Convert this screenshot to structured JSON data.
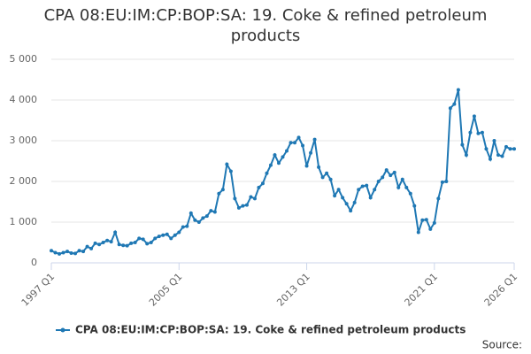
{
  "chart_data": {
    "type": "line",
    "title": "CPA 08:EU:IM:CP:BOP:SA: 19. Coke & refined petroleum products",
    "categories": [
      "1997 Q1",
      null,
      null,
      null,
      null,
      null,
      null,
      null,
      null,
      null,
      null,
      null,
      null,
      null,
      null,
      null,
      null,
      null,
      null,
      null,
      null,
      null,
      null,
      null,
      null,
      null,
      null,
      null,
      null,
      null,
      null,
      null,
      "2005 Q1",
      null,
      null,
      null,
      null,
      null,
      null,
      null,
      null,
      null,
      null,
      null,
      null,
      null,
      null,
      null,
      null,
      null,
      null,
      null,
      null,
      null,
      null,
      null,
      null,
      null,
      null,
      null,
      null,
      null,
      null,
      null,
      "2013 Q1",
      null,
      null,
      null,
      null,
      null,
      null,
      null,
      null,
      null,
      null,
      null,
      null,
      null,
      null,
      null,
      null,
      null,
      null,
      null,
      null,
      null,
      null,
      null,
      null,
      null,
      null,
      null,
      null,
      null,
      null,
      null,
      "2021 Q1",
      null,
      null,
      null,
      null,
      null,
      null,
      null,
      null,
      null,
      null,
      null,
      null,
      null,
      null,
      null,
      null,
      null,
      null,
      null,
      "2026 Q1"
    ],
    "series": [
      {
        "name": "CPA 08:EU:IM:CP:BOP:SA: 19. Coke & refined petroleum products",
        "color": "#1f78b4",
        "values": [
          300,
          250,
          220,
          250,
          280,
          240,
          230,
          300,
          280,
          400,
          350,
          480,
          450,
          500,
          550,
          520,
          750,
          450,
          430,
          420,
          480,
          500,
          600,
          580,
          470,
          500,
          600,
          650,
          680,
          700,
          600,
          680,
          750,
          880,
          900,
          1220,
          1050,
          1000,
          1100,
          1150,
          1280,
          1250,
          1700,
          1800,
          2420,
          2250,
          1580,
          1350,
          1400,
          1420,
          1620,
          1580,
          1850,
          1950,
          2200,
          2400,
          2650,
          2450,
          2600,
          2750,
          2950,
          2950,
          3080,
          2880,
          2380,
          2700,
          3030,
          2350,
          2100,
          2200,
          2050,
          1650,
          1800,
          1600,
          1450,
          1280,
          1480,
          1800,
          1880,
          1900,
          1600,
          1800,
          2000,
          2100,
          2280,
          2150,
          2220,
          1850,
          2050,
          1850,
          1700,
          1400,
          750,
          1050,
          1060,
          830,
          980,
          1580,
          1980,
          2000,
          3800,
          3900,
          4250,
          2900,
          2650,
          3200,
          3600,
          3180,
          3200,
          2800,
          2550,
          3000,
          2650,
          2620,
          2850,
          2800,
          2800
        ]
      }
    ],
    "ylim": [
      0,
      5000
    ],
    "yticks": [
      0,
      {
        "value": 1000,
        "label": "1 000"
      },
      {
        "value": 2000,
        "label": "2 000"
      },
      {
        "value": 3000,
        "label": "3 000"
      },
      {
        "value": 4000,
        "label": "4 000"
      },
      {
        "value": 5000,
        "label": "5 000"
      }
    ],
    "grid": true,
    "source": "Source:"
  }
}
